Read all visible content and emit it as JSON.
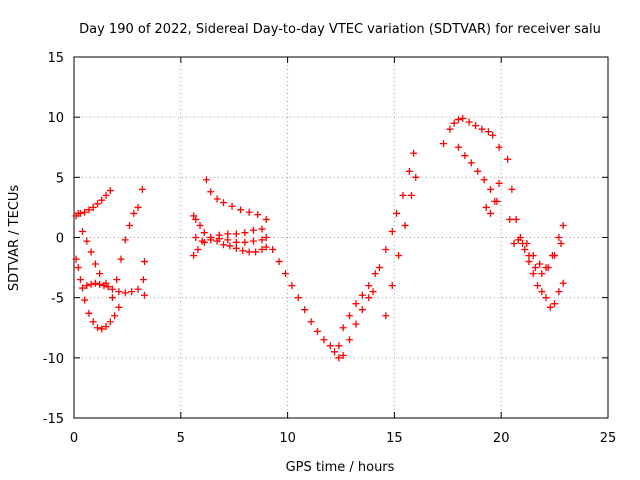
{
  "chart_data": {
    "type": "scatter",
    "title": "Day 190 of 2022, Sidereal Day-to-day VTEC variation (SDTVAR) for receiver salu",
    "xlabel": "GPS time / hours",
    "ylabel": "SDTVAR / TECUs",
    "xlim": [
      0,
      25
    ],
    "ylim": [
      -15,
      15
    ],
    "xticks": [
      0,
      5,
      10,
      15,
      20,
      25
    ],
    "yticks": [
      -15,
      -10,
      -5,
      0,
      5,
      10,
      15
    ],
    "grid": true,
    "marker": "+",
    "series": [
      {
        "name": "SDTVAR",
        "color": "#ff0000",
        "x": [
          0.1,
          0.2,
          0.3,
          0.5,
          0.7,
          0.9,
          1.1,
          1.3,
          1.5,
          1.7,
          0.1,
          0.2,
          0.3,
          0.4,
          0.6,
          0.8,
          1.0,
          1.2,
          1.4,
          1.6,
          0.4,
          0.6,
          0.8,
          1.0,
          1.2,
          1.5,
          1.8,
          2.1,
          2.4,
          2.7,
          3.0,
          0.5,
          0.7,
          0.9,
          1.1,
          1.3,
          1.5,
          1.7,
          1.9,
          2.1,
          1.8,
          2.0,
          2.2,
          2.4,
          2.6,
          2.8,
          3.0,
          3.2,
          3.3,
          3.25,
          3.3,
          5.6,
          5.7,
          5.9,
          6.1,
          6.4,
          6.7,
          7.0,
          7.3,
          7.6,
          7.9,
          8.2,
          8.5,
          8.8,
          9.0,
          5.6,
          5.8,
          6.1,
          6.4,
          6.8,
          7.2,
          7.6,
          8.0,
          8.4,
          8.8,
          6.2,
          6.4,
          6.7,
          7.0,
          7.4,
          7.8,
          8.2,
          8.6,
          9.0,
          5.7,
          6.0,
          6.4,
          6.8,
          7.2,
          7.6,
          8.0,
          8.4,
          8.8,
          9.0,
          9.3,
          9.6,
          9.9,
          10.2,
          10.5,
          10.8,
          11.1,
          11.4,
          11.7,
          12.0,
          12.2,
          12.4,
          12.6,
          12.9,
          13.2,
          13.5,
          13.8,
          14.0,
          14.3,
          14.6,
          14.9,
          15.1,
          15.4,
          15.7,
          15.9,
          12.4,
          12.6,
          12.9,
          13.2,
          13.5,
          13.8,
          14.1,
          14.6,
          14.9,
          15.2,
          15.5,
          15.8,
          16.0,
          17.3,
          17.6,
          17.8,
          18.0,
          18.2,
          18.5,
          18.8,
          19.1,
          19.4,
          19.6,
          19.9,
          18.0,
          18.3,
          18.6,
          18.9,
          19.2,
          19.5,
          19.8,
          19.3,
          19.5,
          19.7,
          19.9,
          20.3,
          20.5,
          20.7,
          20.9,
          21.1,
          21.3,
          21.5,
          21.7,
          21.9,
          22.1,
          22.3,
          22.5,
          22.7,
          22.9,
          20.4,
          20.6,
          20.8,
          21.0,
          21.3,
          21.6,
          21.9,
          22.2,
          22.5,
          22.8,
          21.2,
          21.5,
          21.8,
          22.1,
          22.4,
          22.7,
          22.9
        ],
        "y": [
          1.8,
          2.0,
          2.0,
          2.1,
          2.3,
          2.5,
          2.8,
          3.1,
          3.5,
          3.9,
          -1.8,
          -2.5,
          -3.5,
          -4.2,
          -4.0,
          -3.9,
          -3.8,
          -3.9,
          -4.0,
          -4.1,
          0.5,
          -0.3,
          -1.2,
          -2.2,
          -3.0,
          -3.8,
          -4.3,
          -4.5,
          -4.6,
          -4.5,
          -4.3,
          -5.2,
          -6.3,
          -7.0,
          -7.5,
          -7.6,
          -7.4,
          -7.0,
          -6.5,
          -5.8,
          -5.0,
          -3.5,
          -1.8,
          -0.2,
          1.0,
          2.0,
          2.5,
          4.0,
          -2.0,
          -3.5,
          -4.8,
          1.8,
          1.5,
          1.0,
          0.4,
          0.0,
          -0.3,
          -0.6,
          -0.7,
          -0.9,
          -1.1,
          -1.2,
          -1.2,
          -1.0,
          -0.8,
          -1.5,
          -1.0,
          -0.4,
          0.0,
          0.2,
          0.3,
          0.3,
          0.4,
          0.6,
          0.7,
          4.8,
          3.8,
          3.2,
          2.9,
          2.6,
          2.3,
          2.1,
          1.9,
          1.5,
          0.0,
          -0.3,
          -0.2,
          -0.1,
          -0.2,
          -0.4,
          -0.4,
          -0.3,
          -0.2,
          0.0,
          -1.0,
          -2.0,
          -3.0,
          -4.0,
          -5.0,
          -6.0,
          -7.0,
          -7.8,
          -8.5,
          -9.0,
          -9.5,
          -10.0,
          -9.8,
          -8.5,
          -7.2,
          -6.0,
          -5.0,
          -4.5,
          -2.5,
          -1.0,
          0.5,
          2.0,
          3.5,
          5.5,
          7.0,
          -9.0,
          -7.5,
          -6.5,
          -5.5,
          -4.8,
          -4.0,
          -3.0,
          -6.5,
          -4.0,
          -1.5,
          1.0,
          3.5,
          5.0,
          7.8,
          9.0,
          9.5,
          9.8,
          9.9,
          9.6,
          9.3,
          9.0,
          8.8,
          8.5,
          7.5,
          7.5,
          6.8,
          6.2,
          5.5,
          4.8,
          4.0,
          3.0,
          2.5,
          2.0,
          3.0,
          4.5,
          6.5,
          4.0,
          1.5,
          0.0,
          -1.0,
          -2.0,
          -3.0,
          -4.0,
          -4.5,
          -5.0,
          -5.8,
          -5.5,
          -4.5,
          -3.8,
          1.5,
          -0.5,
          -0.2,
          -0.5,
          -1.5,
          -2.5,
          -3.0,
          -2.5,
          -1.5,
          -0.5,
          -0.5,
          -1.5,
          -2.2,
          -2.5,
          -1.5,
          0.0,
          1.0
        ]
      }
    ]
  }
}
